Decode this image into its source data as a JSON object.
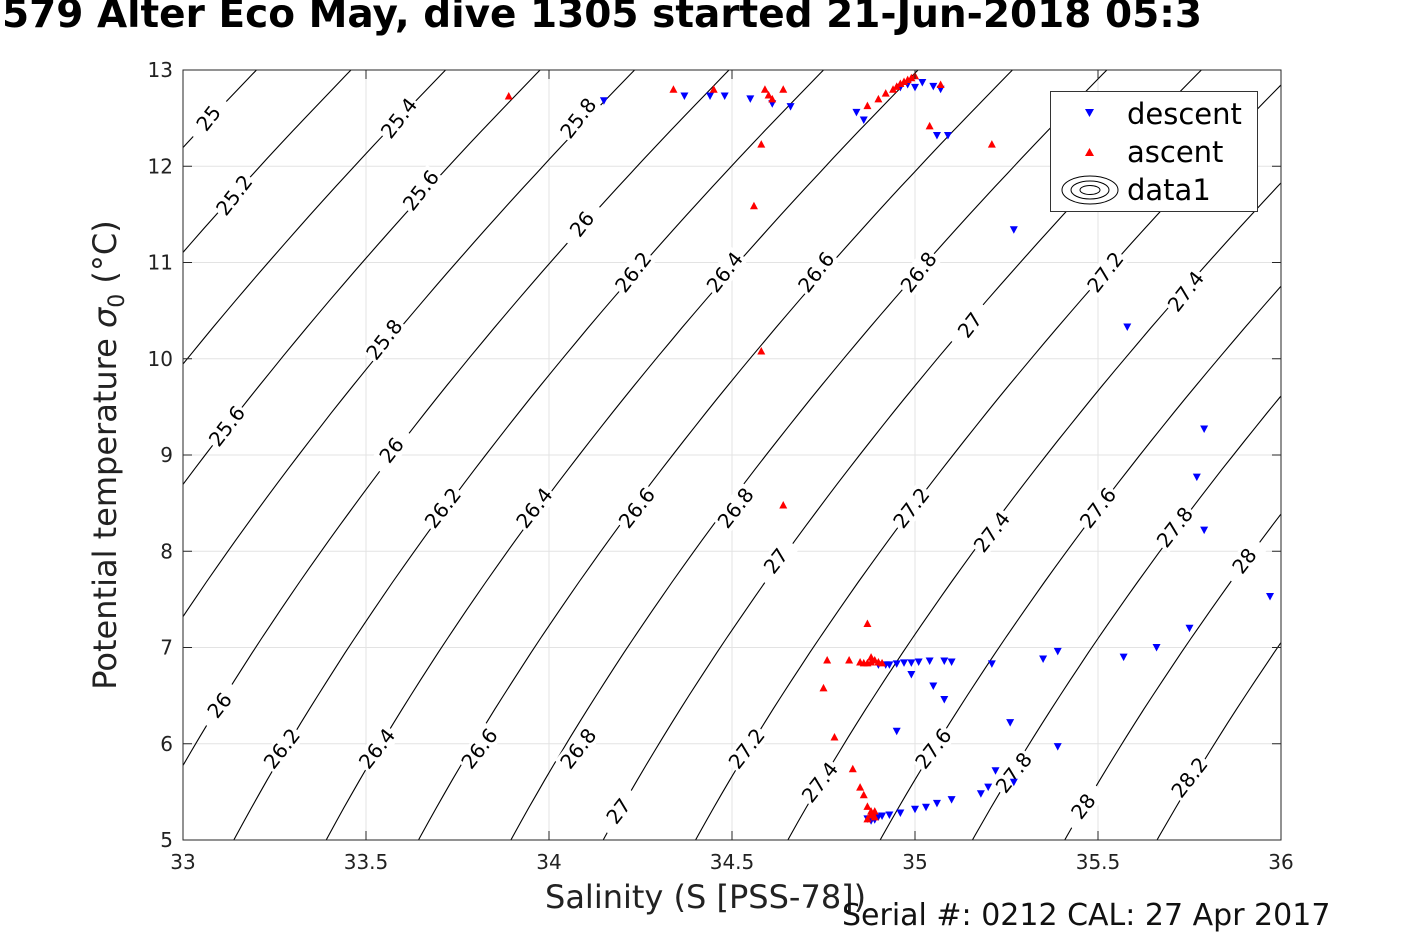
{
  "title": "579 Alter Eco May, dive 1305 started 21-Jun-2018 05:3",
  "footer": "Serial #: 0212  CAL: 27 Apr 2017",
  "chart_data": {
    "type": "scatter",
    "xlabel": "Salinity (S [PSS-78])",
    "ylabel": "Potential temperature",
    "ylabel_symbol": "σ",
    "ylabel_subscript": "0",
    "ylabel_unit": "(°C)",
    "xlim": [
      33,
      36
    ],
    "ylim": [
      5,
      13
    ],
    "xticks": [
      33,
      33.5,
      34,
      34.5,
      35,
      35.5,
      36
    ],
    "yticks": [
      5,
      6,
      7,
      8,
      9,
      10,
      11,
      12,
      13
    ],
    "grid": true,
    "legend_position": "top-right",
    "legend": [
      "descent",
      "ascent",
      "data1"
    ],
    "contours": {
      "levels": [
        25,
        25.2,
        25.4,
        25.6,
        25.8,
        26,
        26.2,
        26.4,
        26.6,
        26.8,
        27,
        27.2,
        27.4,
        27.6,
        27.8,
        28,
        28.2
      ],
      "color": "#000000",
      "labels": [
        {
          "text": "25",
          "s": 33.07,
          "t": 12.5
        },
        {
          "text": "25.2",
          "s": 33.14,
          "t": 11.7
        },
        {
          "text": "25.4",
          "s": 33.59,
          "t": 12.5
        },
        {
          "text": "25.6",
          "s": 33.65,
          "t": 11.75
        },
        {
          "text": "25.6",
          "s": 33.12,
          "t": 9.3
        },
        {
          "text": "25.8",
          "s": 34.08,
          "t": 12.5
        },
        {
          "text": "25.8",
          "s": 33.55,
          "t": 10.2
        },
        {
          "text": "26",
          "s": 34.09,
          "t": 11.4
        },
        {
          "text": "26",
          "s": 33.57,
          "t": 9.05
        },
        {
          "text": "26",
          "s": 33.1,
          "t": 6.4
        },
        {
          "text": "26.2",
          "s": 34.23,
          "t": 10.9
        },
        {
          "text": "26.2",
          "s": 33.71,
          "t": 8.45
        },
        {
          "text": "26.2",
          "s": 33.27,
          "t": 5.95
        },
        {
          "text": "26.4",
          "s": 34.48,
          "t": 10.9
        },
        {
          "text": "26.4",
          "s": 33.96,
          "t": 8.45
        },
        {
          "text": "26.4",
          "s": 33.53,
          "t": 5.95
        },
        {
          "text": "26.6",
          "s": 34.73,
          "t": 10.9
        },
        {
          "text": "26.6",
          "s": 34.24,
          "t": 8.45
        },
        {
          "text": "26.6",
          "s": 33.81,
          "t": 5.95
        },
        {
          "text": "26.8",
          "s": 35.01,
          "t": 10.9
        },
        {
          "text": "26.8",
          "s": 34.51,
          "t": 8.45
        },
        {
          "text": "26.8",
          "s": 34.08,
          "t": 5.95
        },
        {
          "text": "27",
          "s": 35.15,
          "t": 10.35
        },
        {
          "text": "27",
          "s": 34.62,
          "t": 7.9
        },
        {
          "text": "27",
          "s": 34.19,
          "t": 5.3
        },
        {
          "text": "27.2",
          "s": 35.52,
          "t": 10.9
        },
        {
          "text": "27.2",
          "s": 34.99,
          "t": 8.45
        },
        {
          "text": "27.2",
          "s": 34.54,
          "t": 5.95
        },
        {
          "text": "27.4",
          "s": 35.74,
          "t": 10.7
        },
        {
          "text": "27.4",
          "s": 35.21,
          "t": 8.2
        },
        {
          "text": "27.4",
          "s": 34.74,
          "t": 5.6
        },
        {
          "text": "27.6",
          "s": 35.5,
          "t": 8.45
        },
        {
          "text": "27.6",
          "s": 35.05,
          "t": 5.95
        },
        {
          "text": "27.8",
          "s": 35.71,
          "t": 8.25
        },
        {
          "text": "27.8",
          "s": 35.27,
          "t": 5.7
        },
        {
          "text": "28",
          "s": 35.9,
          "t": 7.9
        },
        {
          "text": "28",
          "s": 35.46,
          "t": 5.35
        },
        {
          "text": "28.2",
          "s": 35.75,
          "t": 5.65
        }
      ]
    },
    "series": [
      {
        "name": "descent",
        "marker": "triangle-down",
        "color": "#0000ff",
        "points": [
          [
            34.15,
            12.68
          ],
          [
            34.37,
            12.73
          ],
          [
            34.44,
            12.73
          ],
          [
            34.48,
            12.73
          ],
          [
            34.55,
            12.7
          ],
          [
            34.61,
            12.65
          ],
          [
            34.66,
            12.62
          ],
          [
            34.84,
            12.56
          ],
          [
            34.86,
            12.48
          ],
          [
            34.96,
            12.82
          ],
          [
            34.98,
            12.85
          ],
          [
            35.0,
            12.82
          ],
          [
            35.02,
            12.87
          ],
          [
            35.05,
            12.83
          ],
          [
            35.06,
            12.32
          ],
          [
            35.09,
            12.32
          ],
          [
            35.07,
            12.8
          ],
          [
            35.27,
            11.34
          ],
          [
            35.58,
            10.33
          ],
          [
            35.79,
            9.27
          ],
          [
            35.77,
            8.77
          ],
          [
            35.79,
            8.22
          ],
          [
            35.97,
            7.53
          ],
          [
            35.75,
            7.2
          ],
          [
            35.66,
            7.0
          ],
          [
            35.57,
            6.9
          ],
          [
            35.39,
            6.96
          ],
          [
            35.35,
            6.88
          ],
          [
            35.21,
            6.83
          ],
          [
            35.08,
            6.86
          ],
          [
            35.1,
            6.85
          ],
          [
            35.04,
            6.86
          ],
          [
            35.01,
            6.85
          ],
          [
            34.99,
            6.84
          ],
          [
            34.97,
            6.84
          ],
          [
            34.95,
            6.83
          ],
          [
            34.93,
            6.82
          ],
          [
            34.92,
            6.82
          ],
          [
            34.9,
            6.82
          ],
          [
            34.99,
            6.72
          ],
          [
            35.05,
            6.6
          ],
          [
            35.08,
            6.46
          ],
          [
            34.95,
            6.13
          ],
          [
            35.26,
            6.22
          ],
          [
            35.39,
            5.97
          ],
          [
            35.22,
            5.72
          ],
          [
            35.27,
            5.6
          ],
          [
            35.2,
            5.55
          ],
          [
            35.18,
            5.48
          ],
          [
            35.1,
            5.42
          ],
          [
            35.06,
            5.38
          ],
          [
            35.03,
            5.34
          ],
          [
            35.0,
            5.32
          ],
          [
            34.96,
            5.28
          ],
          [
            34.93,
            5.26
          ],
          [
            34.91,
            5.25
          ],
          [
            34.9,
            5.24
          ],
          [
            34.89,
            5.23
          ],
          [
            34.88,
            5.22
          ],
          [
            34.87,
            5.22
          ],
          [
            34.88,
            5.2
          ],
          [
            34.89,
            5.21
          ]
        ]
      },
      {
        "name": "ascent",
        "marker": "triangle-up",
        "color": "#ff0000",
        "points": [
          [
            33.89,
            12.73
          ],
          [
            34.34,
            12.8
          ],
          [
            34.45,
            12.8
          ],
          [
            34.59,
            12.8
          ],
          [
            34.6,
            12.74
          ],
          [
            34.64,
            12.8
          ],
          [
            34.61,
            12.7
          ],
          [
            34.87,
            12.63
          ],
          [
            34.9,
            12.7
          ],
          [
            34.92,
            12.76
          ],
          [
            34.94,
            12.8
          ],
          [
            34.95,
            12.83
          ],
          [
            34.96,
            12.86
          ],
          [
            34.97,
            12.88
          ],
          [
            34.98,
            12.9
          ],
          [
            34.99,
            12.92
          ],
          [
            35.0,
            12.94
          ],
          [
            35.07,
            12.85
          ],
          [
            35.04,
            12.42
          ],
          [
            35.21,
            12.23
          ],
          [
            34.58,
            12.23
          ],
          [
            34.56,
            11.59
          ],
          [
            34.58,
            10.08
          ],
          [
            34.64,
            8.48
          ],
          [
            34.87,
            7.25
          ],
          [
            34.88,
            6.9
          ],
          [
            34.89,
            6.87
          ],
          [
            34.88,
            6.85
          ],
          [
            34.87,
            6.84
          ],
          [
            34.86,
            6.84
          ],
          [
            34.85,
            6.85
          ],
          [
            34.9,
            6.85
          ],
          [
            34.91,
            6.84
          ],
          [
            34.82,
            6.87
          ],
          [
            34.76,
            6.87
          ],
          [
            34.75,
            6.58
          ],
          [
            34.78,
            6.07
          ],
          [
            34.83,
            5.74
          ],
          [
            34.85,
            5.55
          ],
          [
            34.86,
            5.47
          ],
          [
            34.87,
            5.35
          ],
          [
            34.88,
            5.3
          ],
          [
            34.88,
            5.26
          ],
          [
            34.89,
            5.24
          ],
          [
            34.87,
            5.22
          ],
          [
            34.88,
            5.27
          ],
          [
            34.89,
            5.3
          ]
        ]
      },
      {
        "name": "data1",
        "marker": "contour"
      }
    ]
  }
}
